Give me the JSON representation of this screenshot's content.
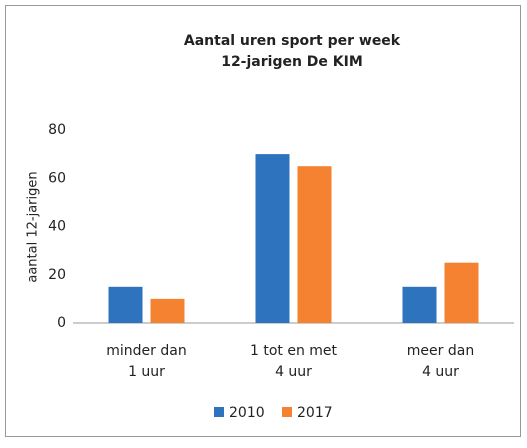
{
  "chart_data": {
    "type": "bar",
    "title": "Aantal uren sport per week",
    "subtitle": "12-jarigen De KIM",
    "y_label": "aantal 12-jarigen",
    "categories": [
      [
        "minder dan",
        "1 uur"
      ],
      [
        "1 tot en met",
        "4 uur"
      ],
      [
        "meer dan",
        "4 uur"
      ]
    ],
    "series": [
      {
        "name": "2010",
        "color": "#2e73bd",
        "values": [
          15,
          70,
          15
        ]
      },
      {
        "name": "2017",
        "color": "#f58231",
        "values": [
          10,
          65,
          25
        ]
      }
    ],
    "ylim": [
      0,
      80
    ],
    "yticks": [
      0,
      20,
      40,
      60,
      80
    ],
    "grid": false,
    "legend": "bottom"
  }
}
